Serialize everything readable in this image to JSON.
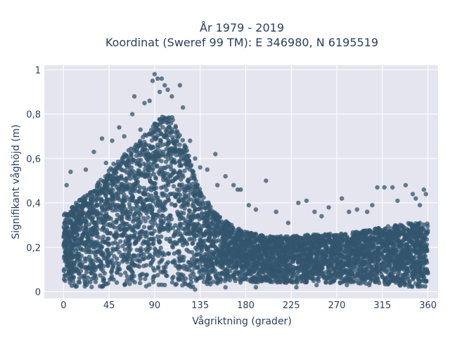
{
  "chart_data": {
    "type": "scatter",
    "title": "År 1979 - 2019",
    "subtitle": "Koordinat (Sweref 99 TM): E 346980, N 6195519",
    "xlabel": "Vågriktning (grader)",
    "ylabel": "Signifikant våghöjd (m)",
    "xlim": [
      -19,
      370
    ],
    "ylim": [
      -0.03,
      1.02
    ],
    "x_ticks": [
      0,
      45,
      90,
      135,
      180,
      225,
      270,
      315,
      360
    ],
    "x_tick_labels": [
      "0",
      "45",
      "90",
      "135",
      "180",
      "225",
      "270",
      "315",
      "360"
    ],
    "y_ticks": [
      0,
      0.2,
      0.4,
      0.6,
      0.8,
      1
    ],
    "y_tick_labels": [
      "0",
      "0,2",
      "0,4",
      "0,6",
      "0,8",
      "1"
    ],
    "grid": true,
    "marker_color": "#33566e",
    "background_color": "#e5e5ef",
    "envelope": {
      "x": [
        0,
        10,
        20,
        30,
        40,
        50,
        60,
        70,
        80,
        90,
        100,
        110,
        120,
        130,
        140,
        150,
        160,
        170,
        180,
        200,
        225,
        250,
        270,
        290,
        315,
        340,
        360
      ],
      "y_max": [
        0.35,
        0.39,
        0.43,
        0.47,
        0.53,
        0.58,
        0.62,
        0.66,
        0.71,
        0.76,
        0.8,
        0.78,
        0.67,
        0.52,
        0.42,
        0.36,
        0.32,
        0.29,
        0.27,
        0.25,
        0.25,
        0.26,
        0.26,
        0.27,
        0.29,
        0.31,
        0.31
      ],
      "y_min": [
        0.04,
        0.02,
        0.02,
        0.02,
        0.02,
        0.02,
        0.02,
        0.02,
        0.02,
        0.02,
        0.02,
        0.02,
        0.02,
        0.02,
        0.03,
        0.03,
        0.03,
        0.04,
        0.04,
        0.04,
        0.04,
        0.04,
        0.04,
        0.03,
        0.03,
        0.02,
        0.02
      ]
    },
    "outliers": [
      {
        "x": 7,
        "y": 0.54
      },
      {
        "x": 3,
        "y": 0.48
      },
      {
        "x": 22,
        "y": 0.55
      },
      {
        "x": 30,
        "y": 0.63
      },
      {
        "x": 38,
        "y": 0.69
      },
      {
        "x": 42,
        "y": 0.58
      },
      {
        "x": 48,
        "y": 0.68
      },
      {
        "x": 55,
        "y": 0.74
      },
      {
        "x": 60,
        "y": 0.7
      },
      {
        "x": 68,
        "y": 0.8
      },
      {
        "x": 70,
        "y": 0.88
      },
      {
        "x": 76,
        "y": 0.73
      },
      {
        "x": 80,
        "y": 0.85
      },
      {
        "x": 85,
        "y": 0.86
      },
      {
        "x": 88,
        "y": 0.95
      },
      {
        "x": 90,
        "y": 0.98
      },
      {
        "x": 93,
        "y": 0.96
      },
      {
        "x": 95,
        "y": 0.9
      },
      {
        "x": 97,
        "y": 0.96
      },
      {
        "x": 100,
        "y": 0.93
      },
      {
        "x": 103,
        "y": 0.91
      },
      {
        "x": 107,
        "y": 0.88
      },
      {
        "x": 115,
        "y": 0.93
      },
      {
        "x": 118,
        "y": 0.83
      },
      {
        "x": 125,
        "y": 0.68
      },
      {
        "x": 130,
        "y": 0.6
      },
      {
        "x": 135,
        "y": 0.56
      },
      {
        "x": 142,
        "y": 0.55
      },
      {
        "x": 150,
        "y": 0.62
      },
      {
        "x": 152,
        "y": 0.48
      },
      {
        "x": 160,
        "y": 0.52
      },
      {
        "x": 168,
        "y": 0.48
      },
      {
        "x": 172,
        "y": 0.46
      },
      {
        "x": 175,
        "y": 0.46
      },
      {
        "x": 183,
        "y": 0.39
      },
      {
        "x": 190,
        "y": 0.37
      },
      {
        "x": 200,
        "y": 0.5
      },
      {
        "x": 210,
        "y": 0.36
      },
      {
        "x": 222,
        "y": 0.31
      },
      {
        "x": 232,
        "y": 0.4
      },
      {
        "x": 240,
        "y": 0.41
      },
      {
        "x": 248,
        "y": 0.36
      },
      {
        "x": 255,
        "y": 0.34
      },
      {
        "x": 262,
        "y": 0.38
      },
      {
        "x": 275,
        "y": 0.42
      },
      {
        "x": 282,
        "y": 0.36
      },
      {
        "x": 290,
        "y": 0.37
      },
      {
        "x": 300,
        "y": 0.36
      },
      {
        "x": 305,
        "y": 0.39
      },
      {
        "x": 310,
        "y": 0.47
      },
      {
        "x": 317,
        "y": 0.47
      },
      {
        "x": 325,
        "y": 0.47
      },
      {
        "x": 330,
        "y": 0.41
      },
      {
        "x": 338,
        "y": 0.48
      },
      {
        "x": 348,
        "y": 0.42
      },
      {
        "x": 352,
        "y": 0.39
      },
      {
        "x": 356,
        "y": 0.46
      },
      {
        "x": 358,
        "y": 0.44
      },
      {
        "x": 345,
        "y": 0.44
      },
      {
        "x": 130,
        "y": 0.01
      },
      {
        "x": 160,
        "y": 0.02
      },
      {
        "x": 250,
        "y": 0.03
      },
      {
        "x": 280,
        "y": 0.03
      },
      {
        "x": 230,
        "y": 0.02
      },
      {
        "x": 190,
        "y": 0.02
      }
    ]
  }
}
